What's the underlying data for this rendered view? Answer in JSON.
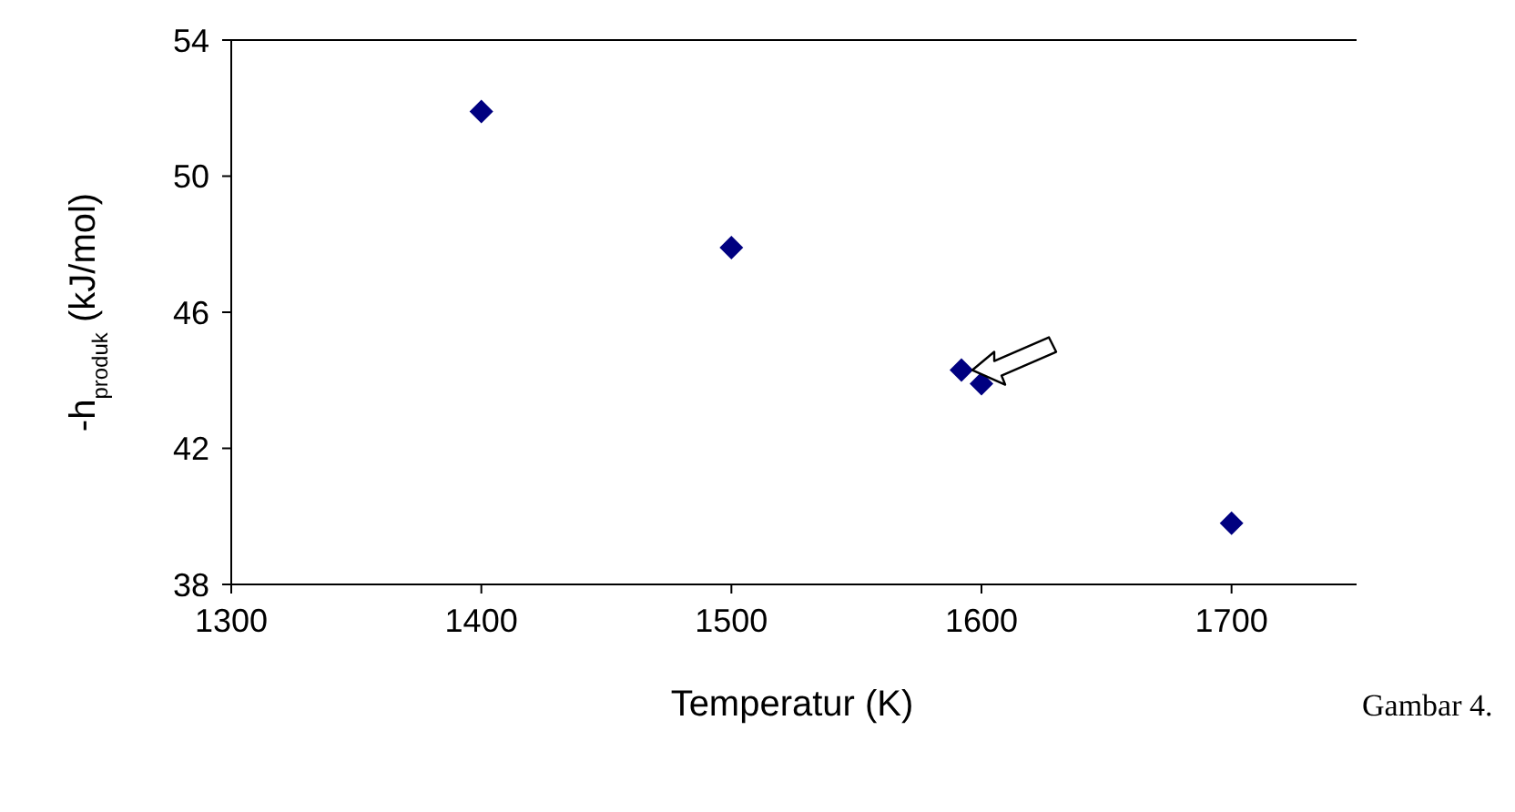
{
  "chart_data": {
    "type": "scatter",
    "xlabel": "Temperatur (K)",
    "ylabel": "-h$_{produk}$ (kJ/mol)",
    "x": [
      1400,
      1500,
      1592,
      1600,
      1700
    ],
    "values": [
      51.9,
      47.9,
      44.3,
      43.9,
      39.8
    ],
    "color": "#000080",
    "marker": "diamond",
    "xlim": [
      1300,
      1750
    ],
    "xticks": [
      1300,
      1400,
      1500,
      1600,
      1700
    ],
    "ylim": [
      38,
      54
    ],
    "yticks": [
      38,
      42,
      46,
      50,
      54
    ],
    "grid": false,
    "annotations": [
      "Gambar 4."
    ]
  }
}
